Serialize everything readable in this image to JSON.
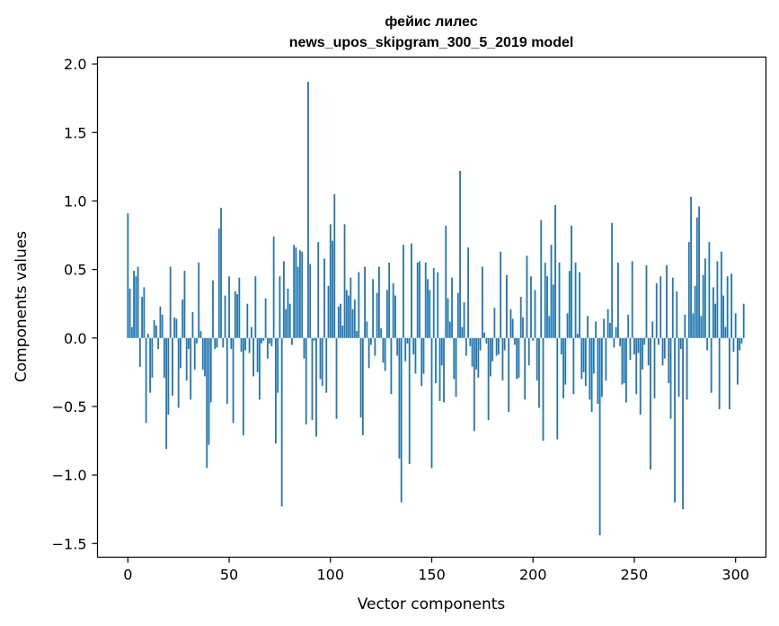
{
  "chart_data": {
    "type": "bar",
    "title_lines": [
      "фейис лилес",
      "news_upos_skipgram_300_5_2019 model"
    ],
    "xlabel": "Vector components",
    "ylabel": "Components values",
    "xlim": [
      -15,
      315
    ],
    "ylim": [
      -1.6,
      2.05
    ],
    "xticks": [
      {
        "value": 0,
        "label": "0"
      },
      {
        "value": 50,
        "label": "50"
      },
      {
        "value": 100,
        "label": "100"
      },
      {
        "value": 150,
        "label": "150"
      },
      {
        "value": 200,
        "label": "200"
      },
      {
        "value": 250,
        "label": "250"
      },
      {
        "value": 300,
        "label": "300"
      }
    ],
    "yticks": [
      {
        "value": 2.0,
        "label": "2.0"
      },
      {
        "value": 1.5,
        "label": "1.5"
      },
      {
        "value": 1.0,
        "label": "1.0"
      },
      {
        "value": 0.5,
        "label": "0.5"
      },
      {
        "value": 0.0,
        "label": "0.0"
      },
      {
        "value": -0.5,
        "label": "−0.5"
      },
      {
        "value": -1.0,
        "label": "−1.0"
      },
      {
        "value": -1.5,
        "label": "−1.5"
      }
    ],
    "bar_color": "#1f77b4",
    "values": [
      0.91,
      0.36,
      0.08,
      0.49,
      0.45,
      0.52,
      -0.21,
      0.3,
      0.37,
      -0.62,
      0.03,
      -0.4,
      -0.29,
      0.13,
      0.09,
      -0.08,
      0.23,
      0.17,
      -0.29,
      -0.81,
      -0.56,
      0.52,
      -0.42,
      0.15,
      0.14,
      -0.51,
      -0.22,
      0.28,
      0.49,
      -0.31,
      -0.08,
      -0.45,
      0.19,
      -0.23,
      -0.04,
      0.55,
      0.05,
      -0.23,
      -0.28,
      -0.95,
      -0.78,
      -0.47,
      0.42,
      -0.08,
      -0.07,
      0.8,
      0.95,
      -0.07,
      0.31,
      -0.48,
      0.45,
      -0.08,
      -0.62,
      0.34,
      0.32,
      0.44,
      -0.1,
      -0.71,
      -0.09,
      0.25,
      -0.11,
      0.08,
      -0.28,
      0.45,
      -0.25,
      -0.45,
      -0.04,
      -0.02,
      0.29,
      -0.15,
      -0.04,
      -0.06,
      0.74,
      -0.77,
      -0.4,
      0.45,
      -1.23,
      0.56,
      0.21,
      0.36,
      0.25,
      -0.05,
      0.68,
      0.66,
      0.52,
      0.64,
      0.63,
      -0.15,
      -0.63,
      1.87,
      0.54,
      -0.6,
      -0.02,
      -0.72,
      0.7,
      -0.3,
      -0.35,
      0.58,
      -0.4,
      0.38,
      0.83,
      0.71,
      1.05,
      -0.59,
      0.23,
      0.25,
      0.09,
      0.83,
      0.35,
      0.31,
      0.44,
      0.21,
      0.28,
      0.05,
      0.48,
      -0.58,
      -0.71,
      0.52,
      0.12,
      -0.22,
      -0.05,
      0.43,
      -0.13,
      0.33,
      0.52,
      0.07,
      -0.18,
      -0.24,
      0.35,
      0.55,
      -0.41,
      0.4,
      0.31,
      -0.13,
      -0.88,
      -1.2,
      0.68,
      -0.17,
      -0.04,
      -0.92,
      0.69,
      -0.12,
      -0.26,
      0.55,
      0.56,
      -0.35,
      -0.26,
      0.55,
      0.43,
      0.35,
      -0.95,
      0.51,
      -0.33,
      0.48,
      -0.46,
      -0.2,
      -0.47,
      0.82,
      0.29,
      0.12,
      0.44,
      -0.3,
      -0.43,
      0.33,
      1.22,
      0.08,
      0.26,
      -0.13,
      0.66,
      -0.06,
      -0.21,
      -0.68,
      -0.23,
      -0.29,
      -0.09,
      0.52,
      0.04,
      -0.04,
      -0.6,
      -0.28,
      -0.17,
      0.22,
      -0.13,
      -0.12,
      0.63,
      -0.31,
      -0.09,
      0.46,
      -0.54,
      0.21,
      0.14,
      -0.05,
      -0.3,
      -0.29,
      0.3,
      0.15,
      -0.45,
      0.6,
      -0.2,
      0.45,
      -0.02,
      0.35,
      -0.31,
      -0.51,
      0.86,
      -0.75,
      0.55,
      0.45,
      0.16,
      0.68,
      0.39,
      0.97,
      -0.74,
      0.55,
      -0.12,
      -0.44,
      -0.34,
      0.18,
      0.49,
      0.82,
      -0.41,
      0.55,
      0.03,
      0.48,
      -0.3,
      -0.25,
      -0.35,
      0.16,
      -0.45,
      -0.54,
      -0.26,
      0.12,
      -0.48,
      -1.44,
      -0.43,
      0.14,
      -0.31,
      0.21,
      0.11,
      0.84,
      -0.07,
      0.08,
      0.55,
      -0.06,
      -0.34,
      -0.33,
      -0.47,
      0.17,
      -0.16,
      0.56,
      -0.12,
      -0.41,
      -0.11,
      -0.56,
      -0.23,
      -0.05,
      0.53,
      -0.2,
      -0.96,
      0.12,
      -0.44,
      0.4,
      -0.05,
      0.45,
      -0.2,
      -0.15,
      0.53,
      -0.33,
      -0.59,
      0.44,
      -1.2,
      0.34,
      -0.43,
      -0.08,
      -1.25,
      0.17,
      -0.45,
      0.7,
      1.03,
      0.18,
      0.38,
      0.88,
      0.96,
      0.16,
      0.46,
      0.58,
      -0.09,
      0.7,
      -0.4,
      0.37,
      0.25,
      0.56,
      -0.52,
      0.63,
      0.31,
      0.08,
      0.45,
      -0.52,
      0.47,
      -0.1,
      0.18,
      -0.34,
      -0.09,
      -0.04,
      0.25
    ]
  }
}
